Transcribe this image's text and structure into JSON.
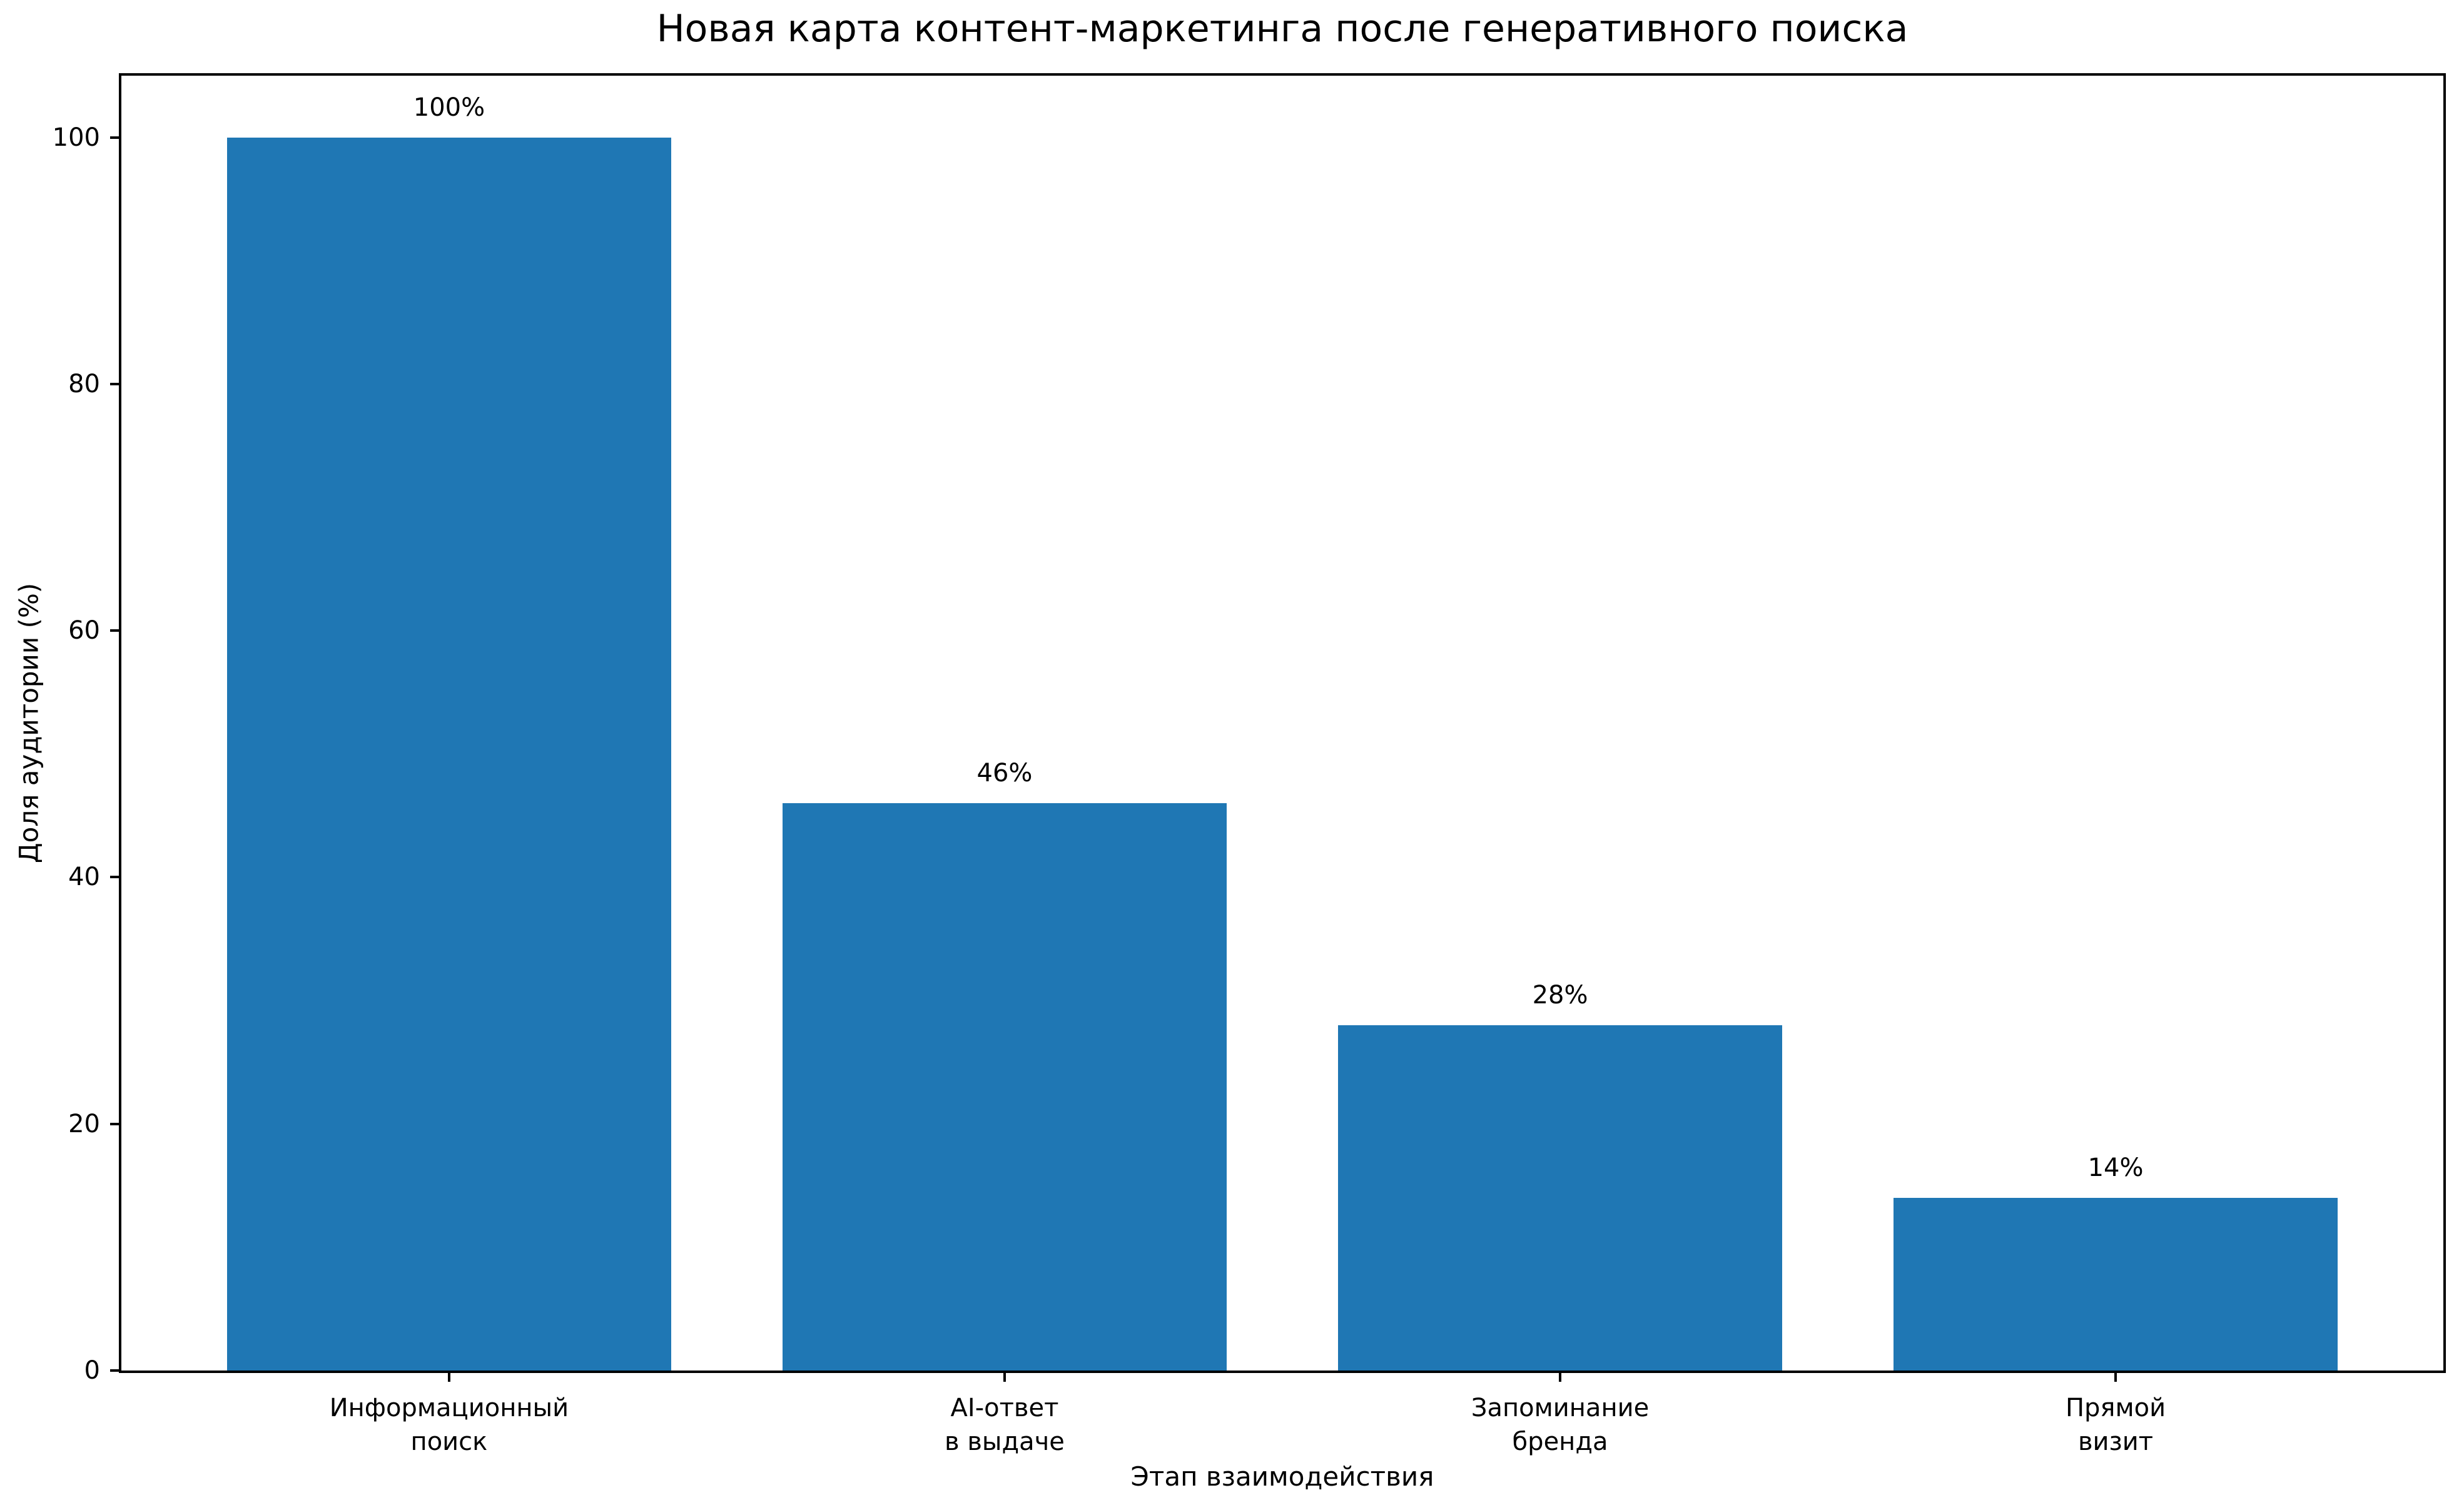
{
  "chart_data": {
    "type": "bar",
    "title": "Новая карта контент-маркетинга после генеративного поиска",
    "xlabel": "Этап взаимодействия",
    "ylabel": "Доля аудитории (%)",
    "categories": [
      "Информационный\nпоиск",
      "AI-ответ\nв выдаче",
      "Запоминание\nбренда",
      "Прямой\nвизит"
    ],
    "values": [
      100,
      46,
      28,
      14
    ],
    "bar_labels": [
      "100%",
      "46%",
      "28%",
      "14%"
    ],
    "yticks": [
      0,
      20,
      40,
      60,
      80,
      100
    ],
    "ylim": [
      0,
      105
    ],
    "bar_color": "#1f77b4",
    "axis_color": "#000000",
    "grid": false,
    "legend": "none"
  }
}
